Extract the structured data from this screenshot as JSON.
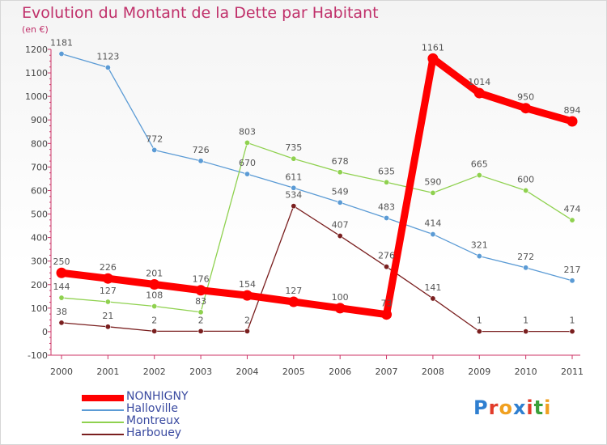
{
  "title": "Evolution du Montant de la Dette par Habitant",
  "subtitle": "(en €)",
  "brand": {
    "text": "Proxiti",
    "letter_colors": [
      "#2f7fd0",
      "#e23b2a",
      "#f0a020",
      "#2f7fd0",
      "#e23b2a",
      "#3aa03a",
      "#f0a020"
    ]
  },
  "chart_data": {
    "type": "line",
    "title": "Evolution du Montant de la Dette par Habitant",
    "subtitle": "(en €)",
    "x": [
      "2000",
      "2001",
      "2002",
      "2003",
      "2004",
      "2005",
      "2006",
      "2007",
      "2008",
      "2009",
      "2010",
      "2011"
    ],
    "ylim": [
      -100,
      1200
    ],
    "yticks": [
      "-100",
      "0",
      "100",
      "200",
      "300",
      "400",
      "500",
      "600",
      "700",
      "800",
      "900",
      "1000",
      "1100",
      "1200"
    ],
    "grid": false,
    "legend_position": "bottom-left",
    "series": [
      {
        "name": "NONHIGNY",
        "color": "#ff0000",
        "values": [
          250,
          226,
          201,
          176,
          154,
          127,
          100,
          73,
          1161,
          1014,
          950,
          894
        ],
        "labels": [
          "250",
          "226",
          "201",
          "176",
          "154",
          "127",
          "100",
          "73",
          "1161",
          "1014",
          "950",
          "894"
        ]
      },
      {
        "name": "Halloville",
        "color": "#5b9bd5",
        "values": [
          1181,
          1123,
          772,
          726,
          670,
          611,
          549,
          483,
          414,
          321,
          272,
          217
        ],
        "labels": [
          "1181",
          "1123",
          "772",
          "726",
          "670",
          "611",
          "549",
          "483",
          "414",
          "321",
          "272",
          "217"
        ]
      },
      {
        "name": "Montreux",
        "color": "#8fd14f",
        "values": [
          144,
          127,
          108,
          83,
          803,
          735,
          678,
          635,
          590,
          665,
          600,
          474
        ],
        "labels": [
          "144",
          "127",
          "108",
          "83",
          "803",
          "735",
          "678",
          "635",
          "590",
          "665",
          "600",
          "474"
        ]
      },
      {
        "name": "Harbouey",
        "color": "#7a1f1f",
        "values": [
          38,
          21,
          2,
          2,
          2,
          534,
          407,
          276,
          141,
          1,
          1,
          1
        ],
        "labels": [
          "38",
          "21",
          "2",
          "2",
          "2",
          "534",
          "407",
          "276",
          "141",
          "1",
          "1",
          "1"
        ]
      }
    ]
  }
}
